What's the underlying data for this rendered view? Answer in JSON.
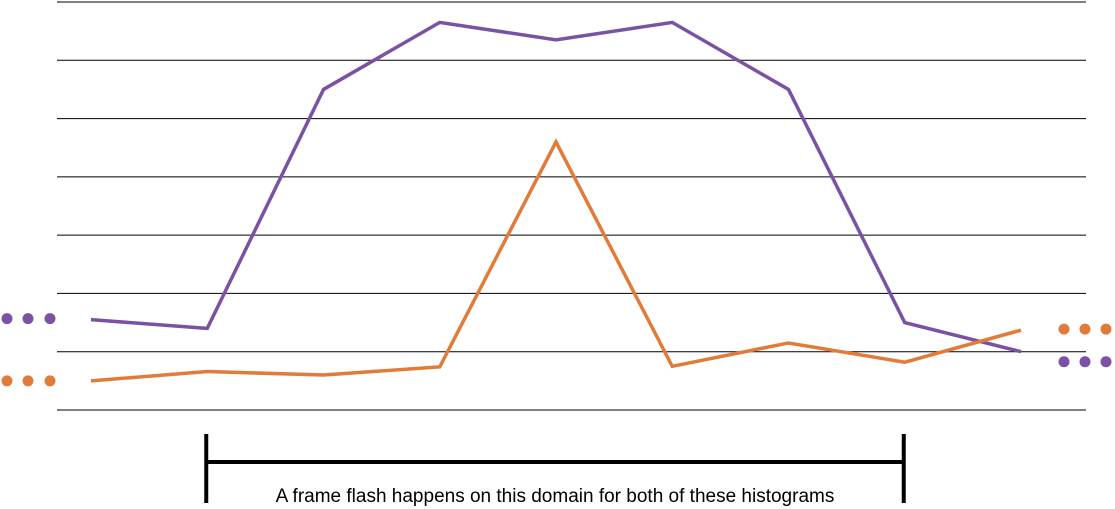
{
  "chart_data": {
    "type": "line",
    "title": "",
    "xlabel": "",
    "ylabel": "",
    "x": [
      1,
      2,
      3,
      4,
      5,
      6,
      7,
      8,
      9
    ],
    "ylim": [
      0,
      7
    ],
    "grid": true,
    "gridlines": 8,
    "series": [
      {
        "color": "#7b52a3",
        "values": [
          1.55,
          1.4,
          5.5,
          6.65,
          6.35,
          6.65,
          5.5,
          1.5,
          1.0
        ]
      },
      {
        "color": "#e07b39",
        "values": [
          0.5,
          0.66,
          0.6,
          0.74,
          4.6,
          0.75,
          1.15,
          0.82,
          1.37
        ]
      }
    ],
    "continuation_markers": "dots",
    "annotation": {
      "text": "A frame flash happens on this domain for both of these histograms",
      "x_start": 2,
      "x_end": 8
    }
  }
}
